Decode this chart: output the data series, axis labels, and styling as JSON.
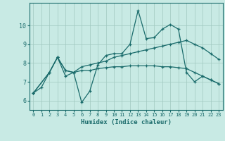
{
  "xlabel": "Humidex (Indice chaleur)",
  "xlim": [
    -0.5,
    23.5
  ],
  "ylim": [
    5.5,
    11.2
  ],
  "yticks": [
    6,
    7,
    8,
    9,
    10
  ],
  "xticks": [
    0,
    1,
    2,
    3,
    4,
    5,
    6,
    7,
    8,
    9,
    10,
    11,
    12,
    13,
    14,
    15,
    16,
    17,
    18,
    19,
    20,
    21,
    22,
    23
  ],
  "bg_color": "#c8eae4",
  "grid_color": "#a0c8c0",
  "line_color": "#1a6b6b",
  "lines": [
    {
      "x": [
        0,
        1,
        2,
        3,
        4,
        5,
        6,
        7,
        8,
        9,
        10,
        11,
        12,
        13,
        14,
        15,
        16,
        17,
        18,
        19,
        20,
        21,
        22,
        23
      ],
      "y": [
        6.4,
        6.7,
        7.5,
        8.3,
        7.3,
        7.5,
        5.9,
        6.5,
        7.9,
        8.4,
        8.5,
        8.5,
        9.0,
        10.8,
        9.3,
        9.35,
        9.8,
        10.05,
        9.8,
        7.5,
        7.0,
        7.3,
        7.1,
        6.9
      ]
    },
    {
      "x": [
        0,
        2,
        3,
        4,
        5,
        6,
        7,
        8,
        9,
        10,
        11,
        12,
        13,
        14,
        15,
        16,
        17,
        18,
        19,
        20,
        21,
        22,
        23
      ],
      "y": [
        6.4,
        7.5,
        8.3,
        7.6,
        7.5,
        7.8,
        7.9,
        8.0,
        8.1,
        8.3,
        8.4,
        8.5,
        8.6,
        8.7,
        8.8,
        8.9,
        9.0,
        9.1,
        9.2,
        9.0,
        8.8,
        8.5,
        8.2
      ]
    },
    {
      "x": [
        0,
        2,
        3,
        4,
        5,
        6,
        7,
        8,
        9,
        10,
        11,
        12,
        13,
        14,
        15,
        16,
        17,
        18,
        19,
        20,
        21,
        22,
        23
      ],
      "y": [
        6.4,
        7.5,
        8.3,
        7.6,
        7.5,
        7.6,
        7.6,
        7.7,
        7.75,
        7.8,
        7.8,
        7.85,
        7.85,
        7.85,
        7.85,
        7.8,
        7.8,
        7.75,
        7.7,
        7.5,
        7.3,
        7.1,
        6.9
      ]
    }
  ]
}
